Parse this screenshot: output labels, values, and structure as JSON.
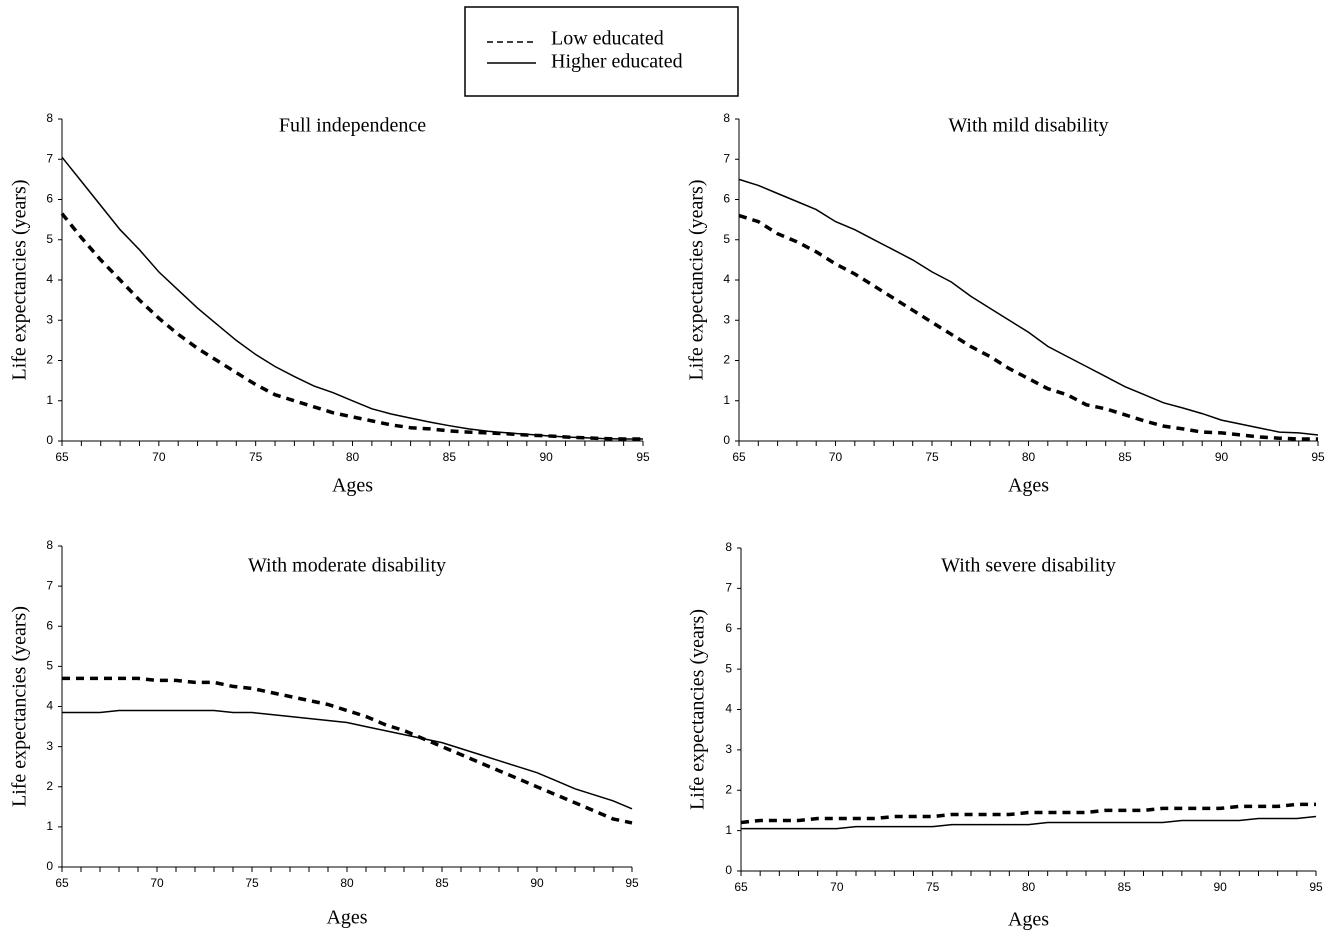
{
  "legend": {
    "entries": [
      {
        "label": "Low educated",
        "style": "dashed"
      },
      {
        "label": "Higher educated",
        "style": "solid"
      }
    ]
  },
  "chart_data": [
    {
      "type": "line",
      "title": "Full independence",
      "xlabel": "Ages",
      "ylabel": "Life expectancies (years)",
      "xlim": [
        65,
        95
      ],
      "ylim": [
        0,
        8
      ],
      "x": [
        65,
        66,
        67,
        68,
        69,
        70,
        71,
        72,
        73,
        74,
        75,
        76,
        77,
        78,
        79,
        80,
        81,
        82,
        83,
        84,
        85,
        86,
        87,
        88,
        89,
        90,
        91,
        92,
        93,
        94,
        95
      ],
      "series": [
        {
          "name": "Low educated",
          "style": "dashed",
          "values": [
            5.65,
            5.05,
            4.5,
            4.0,
            3.5,
            3.05,
            2.65,
            2.3,
            2.0,
            1.7,
            1.4,
            1.15,
            1.0,
            0.85,
            0.7,
            0.6,
            0.5,
            0.4,
            0.33,
            0.3,
            0.25,
            0.22,
            0.2,
            0.18,
            0.15,
            0.13,
            0.1,
            0.08,
            0.06,
            0.05,
            0.05
          ]
        },
        {
          "name": "Higher educated",
          "style": "solid",
          "values": [
            7.05,
            6.45,
            5.85,
            5.25,
            4.75,
            4.2,
            3.75,
            3.3,
            2.9,
            2.5,
            2.15,
            1.85,
            1.6,
            1.37,
            1.2,
            1.0,
            0.8,
            0.67,
            0.57,
            0.47,
            0.38,
            0.3,
            0.24,
            0.2,
            0.17,
            0.13,
            0.1,
            0.08,
            0.06,
            0.05,
            0.05
          ]
        }
      ],
      "yticks": [
        0,
        1,
        2,
        3,
        4,
        5,
        6,
        7,
        8
      ],
      "xticks": [
        65,
        70,
        75,
        80,
        85,
        90,
        95
      ]
    },
    {
      "type": "line",
      "title": "With mild disability",
      "xlabel": "Ages",
      "ylabel": "Life expectancies (years)",
      "xlim": [
        65,
        95
      ],
      "ylim": [
        0,
        8
      ],
      "x": [
        65,
        66,
        67,
        68,
        69,
        70,
        71,
        72,
        73,
        74,
        75,
        76,
        77,
        78,
        79,
        80,
        81,
        82,
        83,
        84,
        85,
        86,
        87,
        88,
        89,
        90,
        91,
        92,
        93,
        94,
        95
      ],
      "series": [
        {
          "name": "Low educated",
          "style": "dashed",
          "values": [
            5.6,
            5.45,
            5.15,
            4.95,
            4.7,
            4.4,
            4.15,
            3.85,
            3.55,
            3.25,
            2.95,
            2.65,
            2.35,
            2.1,
            1.8,
            1.55,
            1.3,
            1.15,
            0.9,
            0.8,
            0.65,
            0.5,
            0.37,
            0.3,
            0.22,
            0.2,
            0.15,
            0.1,
            0.07,
            0.05,
            0.05
          ]
        },
        {
          "name": "Higher educated",
          "style": "solid",
          "values": [
            6.5,
            6.35,
            6.15,
            5.95,
            5.75,
            5.45,
            5.25,
            5.0,
            4.75,
            4.5,
            4.2,
            3.95,
            3.6,
            3.3,
            3.0,
            2.7,
            2.35,
            2.1,
            1.85,
            1.6,
            1.35,
            1.15,
            0.95,
            0.82,
            0.68,
            0.52,
            0.42,
            0.32,
            0.22,
            0.2,
            0.15
          ]
        }
      ],
      "yticks": [
        0,
        1,
        2,
        3,
        4,
        5,
        6,
        7,
        8
      ],
      "xticks": [
        65,
        70,
        75,
        80,
        85,
        90,
        95
      ]
    },
    {
      "type": "line",
      "title": "With moderate disability",
      "xlabel": "Ages",
      "ylabel": "Life expectancies (years)",
      "xlim": [
        65,
        95
      ],
      "ylim": [
        0,
        8
      ],
      "x": [
        65,
        66,
        67,
        68,
        69,
        70,
        71,
        72,
        73,
        74,
        75,
        76,
        77,
        78,
        79,
        80,
        81,
        82,
        83,
        84,
        85,
        86,
        87,
        88,
        89,
        90,
        91,
        92,
        93,
        94,
        95
      ],
      "series": [
        {
          "name": "Low educated",
          "style": "dashed",
          "values": [
            4.7,
            4.7,
            4.7,
            4.7,
            4.7,
            4.65,
            4.65,
            4.6,
            4.6,
            4.5,
            4.45,
            4.35,
            4.25,
            4.15,
            4.05,
            3.9,
            3.75,
            3.55,
            3.4,
            3.2,
            3.0,
            2.8,
            2.6,
            2.4,
            2.2,
            2.0,
            1.8,
            1.6,
            1.4,
            1.2,
            1.1
          ]
        },
        {
          "name": "Higher educated",
          "style": "solid",
          "values": [
            3.85,
            3.85,
            3.85,
            3.9,
            3.9,
            3.9,
            3.9,
            3.9,
            3.9,
            3.85,
            3.85,
            3.8,
            3.75,
            3.7,
            3.65,
            3.6,
            3.5,
            3.4,
            3.3,
            3.2,
            3.1,
            2.95,
            2.8,
            2.65,
            2.5,
            2.35,
            2.15,
            1.95,
            1.8,
            1.65,
            1.45
          ]
        }
      ],
      "yticks": [
        0,
        1,
        2,
        3,
        4,
        5,
        6,
        7,
        8
      ],
      "xticks": [
        65,
        70,
        75,
        80,
        85,
        90,
        95
      ]
    },
    {
      "type": "line",
      "title": "With severe disability",
      "xlabel": "Ages",
      "ylabel": "Life expectancies (years)",
      "xlim": [
        65,
        95
      ],
      "ylim": [
        0,
        8
      ],
      "x": [
        65,
        66,
        67,
        68,
        69,
        70,
        71,
        72,
        73,
        74,
        75,
        76,
        77,
        78,
        79,
        80,
        81,
        82,
        83,
        84,
        85,
        86,
        87,
        88,
        89,
        90,
        91,
        92,
        93,
        94,
        95
      ],
      "series": [
        {
          "name": "Low educated",
          "style": "dashed",
          "values": [
            1.2,
            1.25,
            1.25,
            1.25,
            1.3,
            1.3,
            1.3,
            1.3,
            1.35,
            1.35,
            1.35,
            1.4,
            1.4,
            1.4,
            1.4,
            1.45,
            1.45,
            1.45,
            1.45,
            1.5,
            1.5,
            1.5,
            1.55,
            1.55,
            1.55,
            1.55,
            1.6,
            1.6,
            1.6,
            1.65,
            1.65
          ]
        },
        {
          "name": "Higher educated",
          "style": "solid",
          "values": [
            1.05,
            1.05,
            1.05,
            1.05,
            1.05,
            1.05,
            1.1,
            1.1,
            1.1,
            1.1,
            1.1,
            1.15,
            1.15,
            1.15,
            1.15,
            1.15,
            1.2,
            1.2,
            1.2,
            1.2,
            1.2,
            1.2,
            1.2,
            1.25,
            1.25,
            1.25,
            1.25,
            1.3,
            1.3,
            1.3,
            1.35
          ]
        }
      ],
      "yticks": [
        0,
        1,
        2,
        3,
        4,
        5,
        6,
        7,
        8
      ],
      "xticks": [
        65,
        70,
        75,
        80,
        85,
        90,
        95
      ]
    }
  ]
}
